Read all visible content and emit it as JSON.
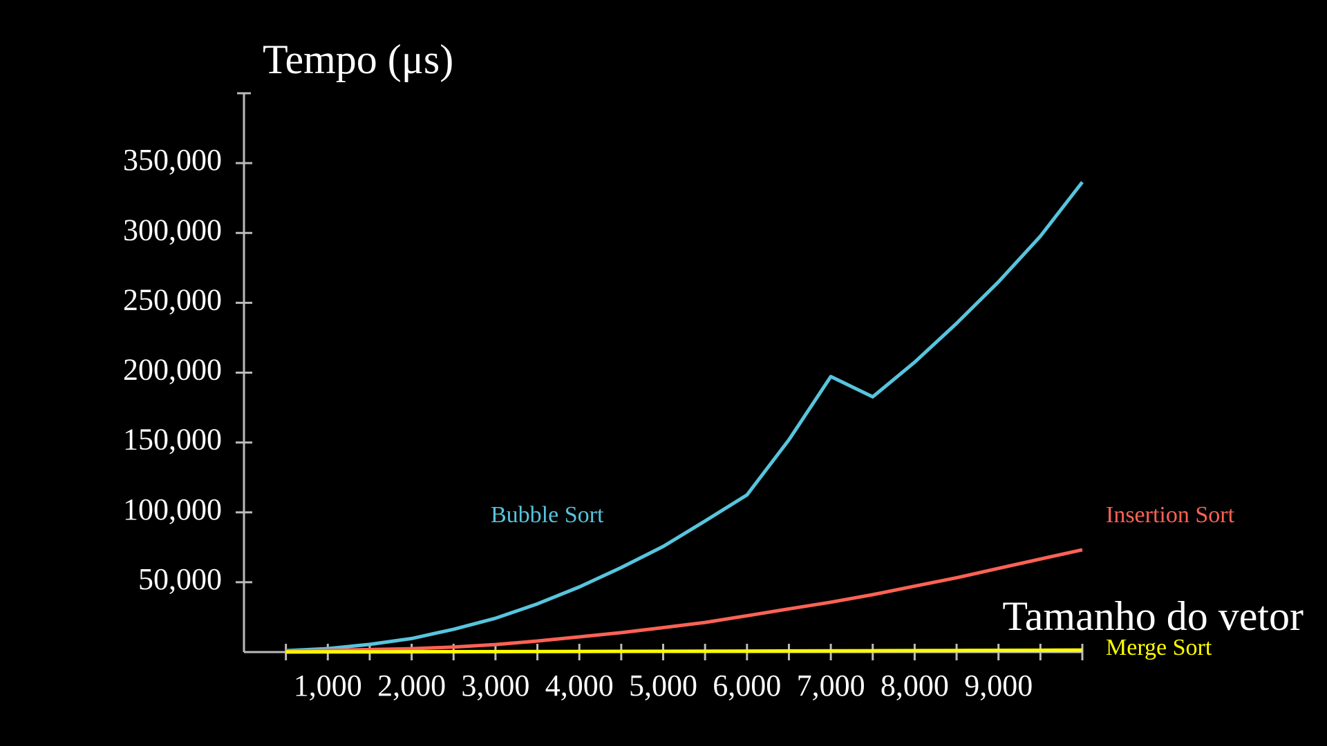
{
  "chart_data": {
    "type": "line",
    "ylabel": "Tempo (μs)",
    "xlabel": "Tamanho do vetor",
    "x": [
      500,
      1000,
      1500,
      2000,
      2500,
      3000,
      3500,
      4000,
      4500,
      5000,
      5500,
      6000,
      6500,
      7000,
      7500,
      8000,
      8500,
      9000,
      9500,
      10000
    ],
    "series": [
      {
        "name": "Bubble Sort",
        "color": "#58c4dd",
        "values": [
          1000,
          2500,
          5500,
          9700,
          16300,
          24200,
          34500,
          46600,
          60500,
          75600,
          93800,
          112500,
          151900,
          197200,
          182700,
          207500,
          235300,
          265000,
          297700,
          336400
        ]
      },
      {
        "name": "Insertion Sort",
        "color": "#fc6255",
        "values": [
          600,
          1200,
          1800,
          2400,
          3600,
          5400,
          7900,
          10900,
          13900,
          17500,
          21200,
          26000,
          30900,
          35700,
          41100,
          47200,
          53200,
          59900,
          66600,
          73200
        ]
      },
      {
        "name": "Merge Sort",
        "color": "#ffff00",
        "values": [
          50,
          100,
          150,
          200,
          260,
          320,
          380,
          440,
          500,
          570,
          640,
          710,
          790,
          870,
          950,
          1040,
          1130,
          1220,
          1320,
          1420
        ]
      }
    ],
    "xlim": [
      0,
      10000
    ],
    "xticks": [
      {
        "value": 1000,
        "label": "1,000"
      },
      {
        "value": 2000,
        "label": "2,000"
      },
      {
        "value": 3000,
        "label": "3,000"
      },
      {
        "value": 4000,
        "label": "4,000"
      },
      {
        "value": 5000,
        "label": "5,000"
      },
      {
        "value": 6000,
        "label": "6,000"
      },
      {
        "value": 7000,
        "label": "7,000"
      },
      {
        "value": 8000,
        "label": "8,000"
      },
      {
        "value": 9000,
        "label": "9,000"
      }
    ],
    "xminor_ticks": [
      500,
      1500,
      2500,
      3500,
      4500,
      5500,
      6500,
      7500,
      8500,
      9500,
      10000
    ],
    "ylim": [
      0,
      400000
    ],
    "yticks": [
      {
        "value": 50000,
        "label": "50,000"
      },
      {
        "value": 100000,
        "label": "100,000"
      },
      {
        "value": 150000,
        "label": "150,000"
      },
      {
        "value": 200000,
        "label": "200,000"
      },
      {
        "value": 250000,
        "label": "250,000"
      },
      {
        "value": 300000,
        "label": "300,000"
      },
      {
        "value": 350000,
        "label": "350,000"
      }
    ],
    "grid": false
  }
}
